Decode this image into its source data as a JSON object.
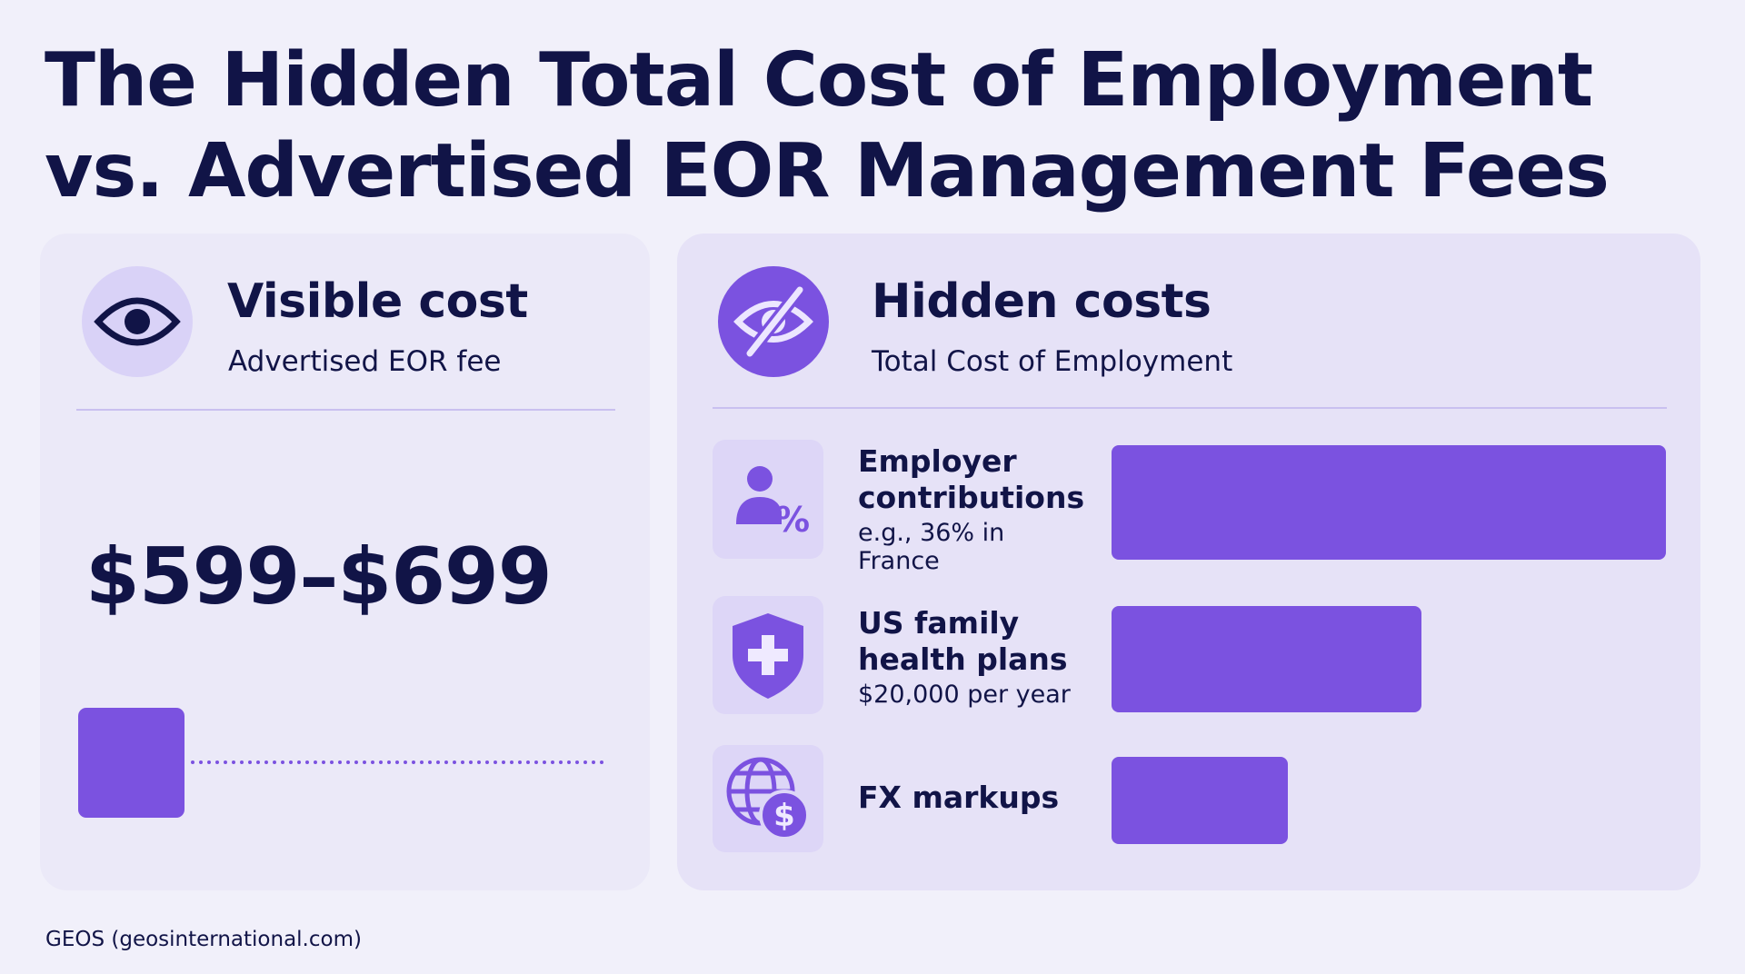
{
  "title": [
    "The Hidden Total Cost of Employment",
    "vs. Advertised EOR Management Fees"
  ],
  "visible": {
    "heading": "Visible cost",
    "subheading": "Advertised EOR fee",
    "amount": "$599–$699"
  },
  "hidden": {
    "heading": "Hidden costs",
    "subheading": "Total Cost of Employment",
    "items": [
      {
        "label": "Employer contributions",
        "note": "e.g., 36% in France"
      },
      {
        "label": "US family health plans",
        "note": "$20,000 per year"
      },
      {
        "label": "FX markups"
      }
    ]
  },
  "footer": "GEOS (geosinternational.com)"
}
